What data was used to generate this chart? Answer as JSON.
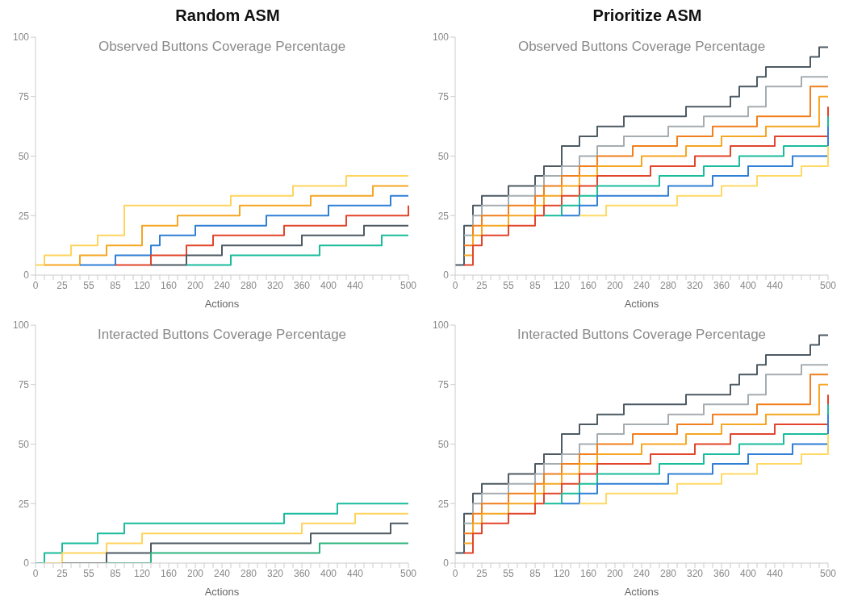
{
  "chart_data": [
    {
      "type": "step",
      "title": "Random ASM",
      "subtitle": "Observed Buttons Coverage Percentage",
      "xlabel": "Actions",
      "categories": [
        "0",
        null,
        null,
        "25",
        null,
        null,
        "55",
        null,
        null,
        "85",
        null,
        null,
        "120",
        null,
        null,
        "160",
        null,
        null,
        "200",
        null,
        null,
        "240",
        null,
        null,
        "280",
        null,
        null,
        "320",
        null,
        null,
        "360",
        null,
        null,
        "400",
        null,
        null,
        "440",
        null,
        null,
        null,
        null,
        null,
        "500"
      ],
      "ylim": [
        0,
        100
      ],
      "yticks": [
        0,
        25,
        50,
        75,
        100
      ],
      "series": [
        {
          "color": "#ffd45e",
          "values": [
            4.2,
            8.3,
            8.3,
            8.3,
            12.5,
            12.5,
            12.5,
            16.7,
            16.7,
            16.7,
            29.2,
            29.2,
            29.2,
            29.2,
            29.2,
            29.2,
            29.2,
            29.2,
            29.2,
            29.2,
            29.2,
            29.2,
            33.3,
            33.3,
            33.3,
            33.3,
            33.3,
            33.3,
            33.3,
            37.5,
            37.5,
            37.5,
            37.5,
            37.5,
            37.5,
            41.7,
            41.7,
            41.7,
            41.7,
            41.7,
            41.7,
            41.7,
            41.7
          ]
        },
        {
          "color": "#f5a623",
          "values": [
            null,
            4.2,
            4.2,
            4.2,
            4.2,
            8.3,
            8.3,
            8.3,
            12.5,
            12.5,
            12.5,
            12.5,
            20.8,
            20.8,
            20.8,
            20.8,
            25,
            25,
            25,
            25,
            25,
            25,
            25,
            29.2,
            29.2,
            29.2,
            29.2,
            29.2,
            29.2,
            29.2,
            29.2,
            33.3,
            33.3,
            33.3,
            33.3,
            33.3,
            33.3,
            33.3,
            37.5,
            37.5,
            37.5,
            37.5,
            37.5
          ]
        },
        {
          "color": "#2f7fd6",
          "values": [
            null,
            null,
            null,
            null,
            null,
            4.2,
            4.2,
            4.2,
            4.2,
            8.3,
            8.3,
            8.3,
            8.3,
            12.5,
            16.7,
            16.7,
            16.7,
            16.7,
            20.8,
            20.8,
            20.8,
            20.8,
            20.8,
            20.8,
            20.8,
            20.8,
            25,
            25,
            25,
            25,
            25,
            25,
            25,
            29.2,
            29.2,
            29.2,
            29.2,
            29.2,
            29.2,
            29.2,
            33.3,
            33.3,
            33.3
          ]
        },
        {
          "color": "#e2452b",
          "values": [
            null,
            null,
            null,
            null,
            null,
            null,
            null,
            null,
            null,
            4.2,
            4.2,
            4.2,
            4.2,
            8.3,
            8.3,
            8.3,
            8.3,
            12.5,
            12.5,
            12.5,
            16.7,
            16.7,
            16.7,
            16.7,
            16.7,
            16.7,
            16.7,
            16.7,
            20.8,
            20.8,
            20.8,
            20.8,
            20.8,
            20.8,
            20.8,
            25,
            25,
            25,
            25,
            25,
            25,
            25,
            29.2
          ]
        },
        {
          "color": "#4d5a63",
          "values": [
            null,
            null,
            null,
            null,
            null,
            null,
            null,
            null,
            null,
            null,
            null,
            null,
            null,
            4.2,
            4.2,
            4.2,
            4.2,
            8.3,
            8.3,
            8.3,
            8.3,
            12.5,
            12.5,
            12.5,
            12.5,
            12.5,
            12.5,
            12.5,
            12.5,
            12.5,
            16.7,
            16.7,
            16.7,
            16.7,
            16.7,
            16.7,
            16.7,
            20.8,
            20.8,
            20.8,
            20.8,
            20.8,
            20.8
          ]
        },
        {
          "color": "#1abc9c",
          "values": [
            null,
            null,
            null,
            null,
            null,
            null,
            null,
            null,
            null,
            null,
            null,
            null,
            null,
            null,
            null,
            null,
            null,
            4.2,
            4.2,
            4.2,
            4.2,
            4.2,
            8.3,
            8.3,
            8.3,
            8.3,
            8.3,
            8.3,
            8.3,
            8.3,
            8.3,
            8.3,
            12.5,
            12.5,
            12.5,
            12.5,
            12.5,
            12.5,
            12.5,
            16.7,
            16.7,
            16.7,
            16.7
          ]
        }
      ]
    },
    {
      "type": "step",
      "title": "Prioritize ASM",
      "subtitle": "Observed Buttons Coverage Percentage",
      "xlabel": "Actions",
      "categories": [
        "0",
        null,
        null,
        "25",
        null,
        null,
        "55",
        null,
        null,
        "85",
        null,
        null,
        "120",
        null,
        null,
        "160",
        null,
        null,
        "200",
        null,
        null,
        "240",
        null,
        null,
        "280",
        null,
        null,
        "320",
        null,
        null,
        "360",
        null,
        null,
        "400",
        null,
        null,
        "440",
        null,
        null,
        null,
        null,
        null,
        "500"
      ],
      "ylim": [
        0,
        100
      ],
      "yticks": [
        0,
        25,
        50,
        75,
        100
      ],
      "series": [
        {
          "color": "#4d5a63",
          "values": [
            4.2,
            20.8,
            29.2,
            33.3,
            33.3,
            33.3,
            37.5,
            37.5,
            37.5,
            41.7,
            45.8,
            45.8,
            54.2,
            54.2,
            58.3,
            58.3,
            62.5,
            62.5,
            62.5,
            66.7,
            66.7,
            66.7,
            66.7,
            66.7,
            66.7,
            66.7,
            70.8,
            70.8,
            70.8,
            70.8,
            70.8,
            75,
            79.2,
            79.2,
            83.3,
            87.5,
            87.5,
            87.5,
            87.5,
            87.5,
            91.7,
            95.8,
            95.8
          ]
        },
        {
          "color": "#a5adb0",
          "values": [
            null,
            16.7,
            25,
            29.2,
            29.2,
            29.2,
            33.3,
            33.3,
            33.3,
            37.5,
            41.7,
            41.7,
            45.8,
            45.8,
            50,
            50,
            54.2,
            54.2,
            54.2,
            58.3,
            58.3,
            58.3,
            58.3,
            58.3,
            62.5,
            62.5,
            62.5,
            62.5,
            66.7,
            66.7,
            66.7,
            66.7,
            66.7,
            70.8,
            70.8,
            79.2,
            79.2,
            79.2,
            79.2,
            83.3,
            83.3,
            83.3,
            83.3
          ]
        },
        {
          "color": "#f07f1e",
          "values": [
            null,
            12.5,
            20.8,
            25,
            25,
            25,
            29.2,
            29.2,
            29.2,
            33.3,
            37.5,
            37.5,
            41.7,
            41.7,
            45.8,
            45.8,
            50,
            50,
            50,
            50,
            54.2,
            54.2,
            54.2,
            54.2,
            54.2,
            58.3,
            58.3,
            58.3,
            58.3,
            62.5,
            62.5,
            62.5,
            62.5,
            62.5,
            66.7,
            66.7,
            66.7,
            66.7,
            66.7,
            66.7,
            79.2,
            79.2,
            79.2
          ]
        },
        {
          "color": "#f5a623",
          "values": [
            null,
            8.3,
            16.7,
            20.8,
            20.8,
            20.8,
            25,
            25,
            25,
            29.2,
            33.3,
            33.3,
            37.5,
            37.5,
            41.7,
            41.7,
            45.8,
            45.8,
            45.8,
            45.8,
            45.8,
            50,
            50,
            50,
            50,
            50,
            54.2,
            54.2,
            54.2,
            54.2,
            58.3,
            58.3,
            58.3,
            58.3,
            58.3,
            62.5,
            62.5,
            62.5,
            62.5,
            62.5,
            62.5,
            75,
            75
          ]
        },
        {
          "color": "#e2452b",
          "values": [
            null,
            4.2,
            12.5,
            16.7,
            16.7,
            16.7,
            20.8,
            20.8,
            20.8,
            25,
            29.2,
            29.2,
            33.3,
            33.3,
            37.5,
            37.5,
            41.7,
            41.7,
            41.7,
            41.7,
            41.7,
            41.7,
            45.8,
            45.8,
            45.8,
            45.8,
            45.8,
            50,
            50,
            50,
            50,
            54.2,
            54.2,
            54.2,
            54.2,
            54.2,
            58.3,
            58.3,
            58.3,
            58.3,
            58.3,
            58.3,
            70.8
          ]
        },
        {
          "color": "#1abc9c",
          "values": [
            null,
            null,
            null,
            null,
            null,
            null,
            null,
            null,
            null,
            null,
            25,
            25,
            29.2,
            29.2,
            33.3,
            33.3,
            37.5,
            37.5,
            37.5,
            37.5,
            37.5,
            37.5,
            37.5,
            41.7,
            41.7,
            41.7,
            41.7,
            41.7,
            45.8,
            45.8,
            45.8,
            45.8,
            50,
            50,
            50,
            50,
            50,
            54.2,
            54.2,
            54.2,
            54.2,
            54.2,
            66.7
          ]
        },
        {
          "color": "#2f7fd6",
          "values": [
            null,
            null,
            null,
            null,
            null,
            null,
            null,
            null,
            null,
            null,
            null,
            null,
            25,
            25,
            29.2,
            29.2,
            33.3,
            33.3,
            33.3,
            33.3,
            33.3,
            33.3,
            33.3,
            33.3,
            37.5,
            37.5,
            37.5,
            37.5,
            37.5,
            41.7,
            41.7,
            41.7,
            41.7,
            45.8,
            45.8,
            45.8,
            45.8,
            45.8,
            50,
            50,
            50,
            50,
            62.5
          ]
        },
        {
          "color": "#ffd966",
          "values": [
            null,
            null,
            null,
            null,
            null,
            null,
            null,
            null,
            null,
            null,
            null,
            null,
            null,
            null,
            25,
            25,
            25,
            29.2,
            29.2,
            29.2,
            29.2,
            29.2,
            29.2,
            29.2,
            29.2,
            33.3,
            33.3,
            33.3,
            33.3,
            33.3,
            37.5,
            37.5,
            37.5,
            37.5,
            41.7,
            41.7,
            41.7,
            41.7,
            41.7,
            45.8,
            45.8,
            45.8,
            54.2
          ]
        }
      ]
    },
    {
      "type": "step",
      "subtitle": "Interacted Buttons Coverage Percentage",
      "xlabel": "Actions",
      "categories": [
        "0",
        null,
        null,
        "25",
        null,
        null,
        "55",
        null,
        null,
        "85",
        null,
        null,
        "120",
        null,
        null,
        "160",
        null,
        null,
        "200",
        null,
        null,
        "240",
        null,
        null,
        "280",
        null,
        null,
        "320",
        null,
        null,
        "360",
        null,
        null,
        "400",
        null,
        null,
        "440",
        null,
        null,
        null,
        null,
        null,
        "500"
      ],
      "ylim": [
        0,
        100
      ],
      "yticks": [
        0,
        25,
        50,
        75,
        100
      ],
      "series": [
        {
          "color": "#1abc9c",
          "values": [
            0,
            4.2,
            4.2,
            8.3,
            8.3,
            8.3,
            8.3,
            12.5,
            12.5,
            12.5,
            16.7,
            16.7,
            16.7,
            16.7,
            16.7,
            16.7,
            16.7,
            16.7,
            16.7,
            16.7,
            16.7,
            16.7,
            16.7,
            16.7,
            16.7,
            16.7,
            16.7,
            16.7,
            20.8,
            20.8,
            20.8,
            20.8,
            20.8,
            20.8,
            25,
            25,
            25,
            25,
            25,
            25,
            25,
            25,
            25
          ]
        },
        {
          "color": "#ffd45e",
          "values": [
            null,
            0,
            0,
            4.2,
            4.2,
            4.2,
            4.2,
            4.2,
            8.3,
            8.3,
            8.3,
            8.3,
            12.5,
            12.5,
            12.5,
            12.5,
            12.5,
            12.5,
            12.5,
            12.5,
            12.5,
            12.5,
            12.5,
            12.5,
            12.5,
            12.5,
            12.5,
            12.5,
            12.5,
            12.5,
            16.7,
            16.7,
            16.7,
            16.7,
            16.7,
            16.7,
            20.8,
            20.8,
            20.8,
            20.8,
            20.8,
            20.8,
            20.8
          ]
        },
        {
          "color": "#4d5a63",
          "values": [
            null,
            null,
            null,
            0,
            0,
            0,
            0,
            0,
            4.2,
            4.2,
            4.2,
            4.2,
            4.2,
            8.3,
            8.3,
            8.3,
            8.3,
            8.3,
            8.3,
            8.3,
            8.3,
            8.3,
            8.3,
            8.3,
            8.3,
            8.3,
            8.3,
            8.3,
            8.3,
            8.3,
            8.3,
            12.5,
            12.5,
            12.5,
            12.5,
            12.5,
            12.5,
            12.5,
            12.5,
            12.5,
            16.7,
            16.7,
            16.7
          ]
        },
        {
          "color": "#2fb37d",
          "values": [
            null,
            null,
            null,
            null,
            null,
            null,
            null,
            null,
            0,
            0,
            0,
            0,
            0,
            4.2,
            4.2,
            4.2,
            4.2,
            4.2,
            4.2,
            4.2,
            4.2,
            4.2,
            4.2,
            4.2,
            4.2,
            4.2,
            4.2,
            4.2,
            4.2,
            4.2,
            4.2,
            4.2,
            8.3,
            8.3,
            8.3,
            8.3,
            8.3,
            8.3,
            8.3,
            8.3,
            8.3,
            8.3,
            8.3
          ]
        }
      ]
    },
    {
      "type": "step",
      "subtitle": "Interacted Buttons Coverage Percentage",
      "xlabel": "Actions",
      "categories": [
        "0",
        null,
        null,
        "25",
        null,
        null,
        "55",
        null,
        null,
        "85",
        null,
        null,
        "120",
        null,
        null,
        "160",
        null,
        null,
        "200",
        null,
        null,
        "240",
        null,
        null,
        "280",
        null,
        null,
        "320",
        null,
        null,
        "360",
        null,
        null,
        "400",
        null,
        null,
        "440",
        null,
        null,
        null,
        null,
        null,
        "500"
      ],
      "ylim": [
        0,
        100
      ],
      "yticks": [
        0,
        25,
        50,
        75,
        100
      ],
      "series": [
        {
          "color": "#4d5a63",
          "values": [
            4.2,
            20.8,
            29.2,
            33.3,
            33.3,
            33.3,
            37.5,
            37.5,
            37.5,
            41.7,
            45.8,
            45.8,
            54.2,
            54.2,
            58.3,
            58.3,
            62.5,
            62.5,
            62.5,
            66.7,
            66.7,
            66.7,
            66.7,
            66.7,
            66.7,
            66.7,
            70.8,
            70.8,
            70.8,
            70.8,
            70.8,
            75,
            79.2,
            79.2,
            83.3,
            87.5,
            87.5,
            87.5,
            87.5,
            87.5,
            91.7,
            95.8,
            95.8
          ]
        },
        {
          "color": "#a5adb0",
          "values": [
            null,
            16.7,
            25,
            29.2,
            29.2,
            29.2,
            33.3,
            33.3,
            33.3,
            37.5,
            41.7,
            41.7,
            45.8,
            45.8,
            50,
            50,
            54.2,
            54.2,
            54.2,
            58.3,
            58.3,
            58.3,
            58.3,
            58.3,
            62.5,
            62.5,
            62.5,
            62.5,
            66.7,
            66.7,
            66.7,
            66.7,
            66.7,
            70.8,
            70.8,
            79.2,
            79.2,
            79.2,
            79.2,
            83.3,
            83.3,
            83.3,
            83.3
          ]
        },
        {
          "color": "#f07f1e",
          "values": [
            null,
            12.5,
            20.8,
            25,
            25,
            25,
            29.2,
            29.2,
            29.2,
            33.3,
            37.5,
            37.5,
            41.7,
            41.7,
            45.8,
            45.8,
            50,
            50,
            50,
            50,
            54.2,
            54.2,
            54.2,
            54.2,
            54.2,
            58.3,
            58.3,
            58.3,
            58.3,
            62.5,
            62.5,
            62.5,
            62.5,
            62.5,
            66.7,
            66.7,
            66.7,
            66.7,
            66.7,
            66.7,
            79.2,
            79.2,
            79.2
          ]
        },
        {
          "color": "#f5a623",
          "values": [
            null,
            8.3,
            16.7,
            20.8,
            20.8,
            20.8,
            25,
            25,
            25,
            29.2,
            33.3,
            33.3,
            37.5,
            37.5,
            41.7,
            41.7,
            45.8,
            45.8,
            45.8,
            45.8,
            45.8,
            50,
            50,
            50,
            50,
            50,
            54.2,
            54.2,
            54.2,
            54.2,
            58.3,
            58.3,
            58.3,
            58.3,
            58.3,
            62.5,
            62.5,
            62.5,
            62.5,
            62.5,
            62.5,
            75,
            75
          ]
        },
        {
          "color": "#e2452b",
          "values": [
            null,
            4.2,
            12.5,
            16.7,
            16.7,
            16.7,
            20.8,
            20.8,
            20.8,
            25,
            29.2,
            29.2,
            33.3,
            33.3,
            37.5,
            37.5,
            41.7,
            41.7,
            41.7,
            41.7,
            41.7,
            41.7,
            45.8,
            45.8,
            45.8,
            45.8,
            45.8,
            50,
            50,
            50,
            50,
            54.2,
            54.2,
            54.2,
            54.2,
            54.2,
            58.3,
            58.3,
            58.3,
            58.3,
            58.3,
            58.3,
            70.8
          ]
        },
        {
          "color": "#1abc9c",
          "values": [
            null,
            null,
            null,
            null,
            null,
            null,
            null,
            null,
            null,
            null,
            25,
            25,
            29.2,
            29.2,
            33.3,
            33.3,
            37.5,
            37.5,
            37.5,
            37.5,
            37.5,
            37.5,
            37.5,
            41.7,
            41.7,
            41.7,
            41.7,
            41.7,
            45.8,
            45.8,
            45.8,
            45.8,
            50,
            50,
            50,
            50,
            50,
            54.2,
            54.2,
            54.2,
            54.2,
            54.2,
            66.7
          ]
        },
        {
          "color": "#2f7fd6",
          "values": [
            null,
            null,
            null,
            null,
            null,
            null,
            null,
            null,
            null,
            null,
            null,
            null,
            25,
            25,
            29.2,
            29.2,
            33.3,
            33.3,
            33.3,
            33.3,
            33.3,
            33.3,
            33.3,
            33.3,
            37.5,
            37.5,
            37.5,
            37.5,
            37.5,
            41.7,
            41.7,
            41.7,
            41.7,
            45.8,
            45.8,
            45.8,
            45.8,
            45.8,
            50,
            50,
            50,
            50,
            62.5
          ]
        },
        {
          "color": "#ffd966",
          "values": [
            null,
            null,
            null,
            null,
            null,
            null,
            null,
            null,
            null,
            null,
            null,
            null,
            null,
            null,
            25,
            25,
            25,
            29.2,
            29.2,
            29.2,
            29.2,
            29.2,
            29.2,
            29.2,
            29.2,
            33.3,
            33.3,
            33.3,
            33.3,
            33.3,
            37.5,
            37.5,
            37.5,
            37.5,
            41.7,
            41.7,
            41.7,
            41.7,
            41.7,
            45.8,
            45.8,
            45.8,
            54.2
          ]
        }
      ]
    }
  ]
}
